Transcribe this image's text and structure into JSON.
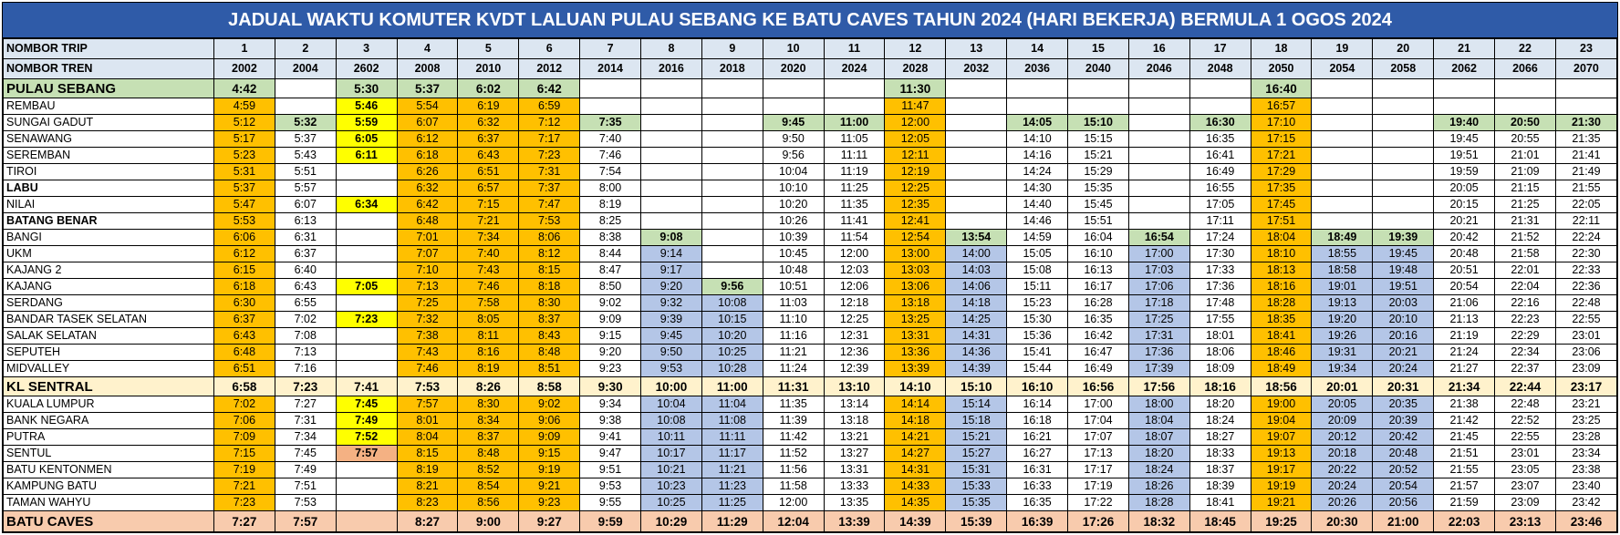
{
  "title": "JADUAL WAKTU KOMUTER KVDT LALUAN PULAU SEBANG KE BATU CAVES TAHUN 2024 (HARI BEKERJA) BERMULA 1 OGOS 2024",
  "header": {
    "trip_label": "NOMBOR TRIP",
    "trips": [
      1,
      2,
      3,
      4,
      5,
      6,
      7,
      8,
      9,
      10,
      11,
      12,
      13,
      14,
      15,
      16,
      17,
      18,
      19,
      20,
      21,
      22,
      23
    ],
    "train_label": "NOMBOR TREN",
    "trains": [
      2002,
      2004,
      2602,
      2008,
      2010,
      2012,
      2014,
      2016,
      2018,
      2020,
      2024,
      2028,
      2032,
      2036,
      2040,
      2046,
      2048,
      2050,
      2054,
      2058,
      2062,
      2066,
      2070
    ]
  },
  "rows": [
    {
      "station": "PULAU SEBANG",
      "times": [
        "4:42",
        null,
        "5:30",
        "5:37",
        "6:02",
        "6:42",
        null,
        null,
        null,
        null,
        null,
        "11:30",
        null,
        null,
        null,
        null,
        null,
        "16:40",
        null,
        null,
        null,
        null,
        null
      ]
    },
    {
      "station": "REMBAU",
      "times": [
        "4:59",
        null,
        "5:46",
        "5:54",
        "6:19",
        "6:59",
        null,
        null,
        null,
        null,
        null,
        "11:47",
        null,
        null,
        null,
        null,
        null,
        "16:57",
        null,
        null,
        null,
        null,
        null
      ]
    },
    {
      "station": "SUNGAI GADUT",
      "times": [
        "5:12",
        "5:32",
        "5:59",
        "6:07",
        "6:32",
        "7:12",
        "7:35",
        null,
        null,
        "9:45",
        "11:00",
        "12:00",
        null,
        "14:05",
        "15:10",
        null,
        "16:30",
        "17:10",
        null,
        null,
        "19:40",
        "20:50",
        "21:30"
      ]
    },
    {
      "station": "SENAWANG",
      "times": [
        "5:17",
        "5:37",
        "6:05",
        "6:12",
        "6:37",
        "7:17",
        "7:40",
        null,
        null,
        "9:50",
        "11:05",
        "12:05",
        null,
        "14:10",
        "15:15",
        null,
        "16:35",
        "17:15",
        null,
        null,
        "19:45",
        "20:55",
        "21:35"
      ]
    },
    {
      "station": "SEREMBAN",
      "times": [
        "5:23",
        "5:43",
        "6:11",
        "6:18",
        "6:43",
        "7:23",
        "7:46",
        null,
        null,
        "9:56",
        "11:11",
        "12:11",
        null,
        "14:16",
        "15:21",
        null,
        "16:41",
        "17:21",
        null,
        null,
        "19:51",
        "21:01",
        "21:41"
      ]
    },
    {
      "station": "TIROI",
      "times": [
        "5:31",
        "5:51",
        null,
        "6:26",
        "6:51",
        "7:31",
        "7:54",
        null,
        null,
        "10:04",
        "11:19",
        "12:19",
        null,
        "14:24",
        "15:29",
        null,
        "16:49",
        "17:29",
        null,
        null,
        "19:59",
        "21:09",
        "21:49"
      ]
    },
    {
      "station": "LABU",
      "times": [
        "5:37",
        "5:57",
        null,
        "6:32",
        "6:57",
        "7:37",
        "8:00",
        null,
        null,
        "10:10",
        "11:25",
        "12:25",
        null,
        "14:30",
        "15:35",
        null,
        "16:55",
        "17:35",
        null,
        null,
        "20:05",
        "21:15",
        "21:55"
      ]
    },
    {
      "station": "NILAI",
      "times": [
        "5:47",
        "6:07",
        "6:34",
        "6:42",
        "7:15",
        "7:47",
        "8:19",
        null,
        null,
        "10:20",
        "11:35",
        "12:35",
        null,
        "14:40",
        "15:45",
        null,
        "17:05",
        "17:45",
        null,
        null,
        "20:15",
        "21:25",
        "22:05"
      ]
    },
    {
      "station": "BATANG BENAR",
      "times": [
        "5:53",
        "6:13",
        null,
        "6:48",
        "7:21",
        "7:53",
        "8:25",
        null,
        null,
        "10:26",
        "11:41",
        "12:41",
        null,
        "14:46",
        "15:51",
        null,
        "17:11",
        "17:51",
        null,
        null,
        "20:21",
        "21:31",
        "22:11"
      ]
    },
    {
      "station": "BANGI",
      "times": [
        "6:06",
        "6:31",
        null,
        "7:01",
        "7:34",
        "8:06",
        "8:38",
        "9:08",
        null,
        "10:39",
        "11:54",
        "12:54",
        "13:54",
        "14:59",
        "16:04",
        "16:54",
        "17:24",
        "18:04",
        "18:49",
        "19:39",
        "20:42",
        "21:52",
        "22:24"
      ]
    },
    {
      "station": "UKM",
      "times": [
        "6:12",
        "6:37",
        null,
        "7:07",
        "7:40",
        "8:12",
        "8:44",
        "9:14",
        null,
        "10:45",
        "12:00",
        "13:00",
        "14:00",
        "15:05",
        "16:10",
        "17:00",
        "17:30",
        "18:10",
        "18:55",
        "19:45",
        "20:48",
        "21:58",
        "22:30"
      ]
    },
    {
      "station": "KAJANG 2",
      "times": [
        "6:15",
        "6:40",
        null,
        "7:10",
        "7:43",
        "8:15",
        "8:47",
        "9:17",
        null,
        "10:48",
        "12:03",
        "13:03",
        "14:03",
        "15:08",
        "16:13",
        "17:03",
        "17:33",
        "18:13",
        "18:58",
        "19:48",
        "20:51",
        "22:01",
        "22:33"
      ]
    },
    {
      "station": "KAJANG",
      "times": [
        "6:18",
        "6:43",
        "7:05",
        "7:13",
        "7:46",
        "8:18",
        "8:50",
        "9:20",
        "9:56",
        "10:51",
        "12:06",
        "13:06",
        "14:06",
        "15:11",
        "16:17",
        "17:06",
        "17:36",
        "18:16",
        "19:01",
        "19:51",
        "20:54",
        "22:04",
        "22:36"
      ]
    },
    {
      "station": "SERDANG",
      "times": [
        "6:30",
        "6:55",
        null,
        "7:25",
        "7:58",
        "8:30",
        "9:02",
        "9:32",
        "10:08",
        "11:03",
        "12:18",
        "13:18",
        "14:18",
        "15:23",
        "16:28",
        "17:18",
        "17:48",
        "18:28",
        "19:13",
        "20:03",
        "21:06",
        "22:16",
        "22:48"
      ]
    },
    {
      "station": "BANDAR TASEK SELATAN",
      "times": [
        "6:37",
        "7:02",
        "7:23",
        "7:32",
        "8:05",
        "8:37",
        "9:09",
        "9:39",
        "10:15",
        "11:10",
        "12:25",
        "13:25",
        "14:25",
        "15:30",
        "16:35",
        "17:25",
        "17:55",
        "18:35",
        "19:20",
        "20:10",
        "21:13",
        "22:23",
        "22:55"
      ]
    },
    {
      "station": "SALAK SELATAN",
      "times": [
        "6:43",
        "7:08",
        null,
        "7:38",
        "8:11",
        "8:43",
        "9:15",
        "9:45",
        "10:20",
        "11:16",
        "12:31",
        "13:31",
        "14:31",
        "15:36",
        "16:42",
        "17:31",
        "18:01",
        "18:41",
        "19:26",
        "20:16",
        "21:19",
        "22:29",
        "23:01"
      ]
    },
    {
      "station": "SEPUTEH",
      "times": [
        "6:48",
        "7:13",
        null,
        "7:43",
        "8:16",
        "8:48",
        "9:20",
        "9:50",
        "10:25",
        "11:21",
        "12:36",
        "13:36",
        "14:36",
        "15:41",
        "16:47",
        "17:36",
        "18:06",
        "18:46",
        "19:31",
        "20:21",
        "21:24",
        "22:34",
        "23:06"
      ]
    },
    {
      "station": "MIDVALLEY",
      "times": [
        "6:51",
        "7:16",
        null,
        "7:46",
        "8:19",
        "8:51",
        "9:23",
        "9:53",
        "10:28",
        "11:24",
        "12:39",
        "13:39",
        "14:39",
        "15:44",
        "16:49",
        "17:39",
        "18:09",
        "18:49",
        "19:34",
        "20:24",
        "21:27",
        "22:37",
        "23:09"
      ]
    },
    {
      "station": "KL SENTRAL",
      "times": [
        "6:58",
        "7:23",
        "7:41",
        "7:53",
        "8:26",
        "8:58",
        "9:30",
        "10:00",
        "11:00",
        "11:31",
        "13:10",
        "14:10",
        "15:10",
        "16:10",
        "16:56",
        "17:56",
        "18:16",
        "18:56",
        "20:01",
        "20:31",
        "21:34",
        "22:44",
        "23:17"
      ]
    },
    {
      "station": "KUALA LUMPUR",
      "times": [
        "7:02",
        "7:27",
        "7:45",
        "7:57",
        "8:30",
        "9:02",
        "9:34",
        "10:04",
        "11:04",
        "11:35",
        "13:14",
        "14:14",
        "15:14",
        "16:14",
        "17:00",
        "18:00",
        "18:20",
        "19:00",
        "20:05",
        "20:35",
        "21:38",
        "22:48",
        "23:21"
      ]
    },
    {
      "station": "BANK NEGARA",
      "times": [
        "7:06",
        "7:31",
        "7:49",
        "8:01",
        "8:34",
        "9:06",
        "9:38",
        "10:08",
        "11:08",
        "11:39",
        "13:18",
        "14:18",
        "15:18",
        "16:18",
        "17:04",
        "18:04",
        "18:24",
        "19:04",
        "20:09",
        "20:39",
        "21:42",
        "22:52",
        "23:25"
      ]
    },
    {
      "station": "PUTRA",
      "times": [
        "7:09",
        "7:34",
        "7:52",
        "8:04",
        "8:37",
        "9:09",
        "9:41",
        "10:11",
        "11:11",
        "11:42",
        "13:21",
        "14:21",
        "15:21",
        "16:21",
        "17:07",
        "18:07",
        "18:27",
        "19:07",
        "20:12",
        "20:42",
        "21:45",
        "22:55",
        "23:28"
      ]
    },
    {
      "station": "SENTUL",
      "times": [
        "7:15",
        "7:45",
        "7:57",
        "8:15",
        "8:48",
        "9:15",
        "9:47",
        "10:17",
        "11:17",
        "11:52",
        "13:27",
        "14:27",
        "15:27",
        "16:27",
        "17:13",
        "18:20",
        "18:33",
        "19:13",
        "20:18",
        "20:48",
        "21:51",
        "23:01",
        "23:34"
      ]
    },
    {
      "station": "BATU KENTONMEN",
      "times": [
        "7:19",
        "7:49",
        null,
        "8:19",
        "8:52",
        "9:19",
        "9:51",
        "10:21",
        "11:21",
        "11:56",
        "13:31",
        "14:31",
        "15:31",
        "16:31",
        "17:17",
        "18:24",
        "18:37",
        "19:17",
        "20:22",
        "20:52",
        "21:55",
        "23:05",
        "23:38"
      ]
    },
    {
      "station": "KAMPUNG BATU",
      "times": [
        "7:21",
        "7:51",
        null,
        "8:21",
        "8:54",
        "9:21",
        "9:53",
        "10:23",
        "11:23",
        "11:58",
        "13:33",
        "14:33",
        "15:33",
        "16:33",
        "17:19",
        "18:26",
        "18:39",
        "19:19",
        "20:24",
        "20:54",
        "21:57",
        "23:07",
        "23:40"
      ]
    },
    {
      "station": "TAMAN WAHYU",
      "times": [
        "7:23",
        "7:53",
        null,
        "8:23",
        "8:56",
        "9:23",
        "9:55",
        "10:25",
        "11:25",
        "12:00",
        "13:35",
        "14:35",
        "15:35",
        "16:35",
        "17:22",
        "18:28",
        "18:41",
        "19:21",
        "20:26",
        "20:56",
        "21:59",
        "23:09",
        "23:42"
      ]
    },
    {
      "station": "BATU CAVES",
      "times": [
        "7:27",
        "7:57",
        null,
        "8:27",
        "9:00",
        "9:27",
        "9:59",
        "10:29",
        "11:29",
        "12:04",
        "13:39",
        "14:39",
        "15:39",
        "16:39",
        "17:26",
        "18:32",
        "18:45",
        "19:25",
        "20:30",
        "21:00",
        "22:03",
        "23:13",
        "23:46"
      ]
    }
  ]
}
